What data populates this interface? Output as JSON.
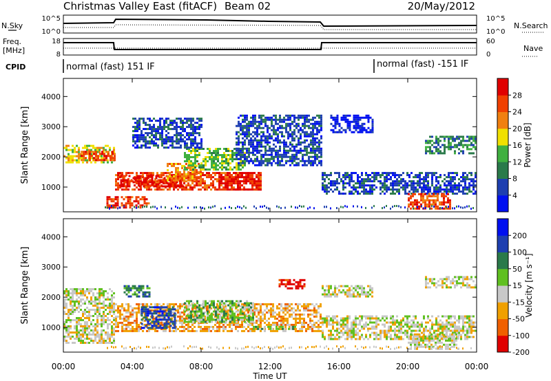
{
  "header": {
    "title": "Christmas Valley East (fitACF)",
    "beam": "Beam 02",
    "date": "20/May/2012"
  },
  "top_panels": {
    "nsky": {
      "left_label": "N.Sky",
      "right_label": "N.Search",
      "ticks": [
        "10^5",
        "10^0"
      ]
    },
    "freq": {
      "left_label_1": "Freq.",
      "left_label_2": "[MHz]",
      "ticks_left": [
        "18",
        "8"
      ],
      "ticks_right": [
        "60",
        "0"
      ],
      "right_label": "Nave"
    },
    "cpid": {
      "label": "CPID",
      "segments": [
        "normal (fast) 151 IF",
        "normal (fast) -151 IF"
      ]
    }
  },
  "chart_data": [
    {
      "type": "heatmap",
      "name": "Power",
      "ylabel": "Slant Range [km]",
      "yticks": [
        1000,
        2000,
        3000,
        4000
      ],
      "ylim": [
        180,
        4600
      ],
      "xlim": [
        0,
        24
      ],
      "colorbar": {
        "label": "Power [dB]",
        "ticks": [
          "4",
          "8",
          "12",
          "16",
          "20",
          "24",
          "28"
        ],
        "colors": [
          "#0010f0",
          "#1e3fb0",
          "#2a7a4a",
          "#40b040",
          "#f0e000",
          "#f08010",
          "#f04000",
          "#e00000"
        ]
      },
      "regions": [
        {
          "x0": 0.0,
          "x1": 3.0,
          "y0": 1800,
          "y1": 2400,
          "level": 4
        },
        {
          "x0": 1.0,
          "x1": 3.0,
          "y0": 1900,
          "y1": 2200,
          "level": 6
        },
        {
          "x0": 3.0,
          "x1": 11.5,
          "y0": 900,
          "y1": 1500,
          "level": 6
        },
        {
          "x0": 3.3,
          "x1": 7.0,
          "y0": 1050,
          "y1": 1400,
          "level": 7
        },
        {
          "x0": 6.0,
          "x1": 8.0,
          "y0": 1200,
          "y1": 1800,
          "level": 5
        },
        {
          "x0": 9.0,
          "x1": 11.5,
          "y0": 900,
          "y1": 1500,
          "level": 7
        },
        {
          "x0": 2.5,
          "x1": 5.0,
          "y0": 300,
          "y1": 700,
          "level": 6
        },
        {
          "x0": 7.0,
          "x1": 10.5,
          "y0": 1600,
          "y1": 2300,
          "level": 3
        },
        {
          "x0": 4.0,
          "x1": 8.0,
          "y0": 2300,
          "y1": 3300,
          "level": 1
        },
        {
          "x0": 10.0,
          "x1": 15.0,
          "y0": 1700,
          "y1": 3400,
          "level": 1
        },
        {
          "x0": 15.0,
          "x1": 24.0,
          "y0": 800,
          "y1": 1500,
          "level": 1
        },
        {
          "x0": 20.0,
          "x1": 22.5,
          "y0": 300,
          "y1": 800,
          "level": 6
        },
        {
          "x0": 21.0,
          "x1": 24.0,
          "y0": 2100,
          "y1": 2700,
          "level": 2
        },
        {
          "x0": 15.5,
          "x1": 18.0,
          "y0": 2800,
          "y1": 3400,
          "level": 0
        }
      ]
    },
    {
      "type": "heatmap",
      "name": "Velocity",
      "ylabel": "Slant Range [km]",
      "yticks": [
        1000,
        2000,
        3000,
        4000
      ],
      "ylim": [
        180,
        4600
      ],
      "xlim": [
        0,
        24
      ],
      "xticks": [
        "00:00",
        "04:00",
        "08:00",
        "12:00",
        "16:00",
        "20:00",
        "00:00"
      ],
      "xlabel": "Time UT",
      "colorbar": {
        "label": "Velocity [m s⁻¹]",
        "ticks": [
          "200",
          "100",
          "50",
          "15",
          "-15",
          "-50",
          "-100",
          "-200"
        ],
        "colors": [
          "#0010f0",
          "#1e3fb0",
          "#2a7a4a",
          "#60c020",
          "#c8c8c8",
          "#f0a000",
          "#f06000",
          "#e00000"
        ]
      },
      "regions": [
        {
          "x0": 0.0,
          "x1": 3.0,
          "y0": 500,
          "y1": 2300,
          "level": 4
        },
        {
          "x0": 3.0,
          "x1": 15.0,
          "y0": 900,
          "y1": 1800,
          "level": 5
        },
        {
          "x0": 4.5,
          "x1": 6.5,
          "y0": 1000,
          "y1": 1700,
          "level": 1
        },
        {
          "x0": 7.0,
          "x1": 11.0,
          "y0": 1200,
          "y1": 1900,
          "level": 3
        },
        {
          "x0": 11.0,
          "x1": 13.5,
          "y0": 950,
          "y1": 1050,
          "level": 3
        },
        {
          "x0": 3.5,
          "x1": 5.0,
          "y0": 2000,
          "y1": 2400,
          "level": 2
        },
        {
          "x0": 12.5,
          "x1": 14.0,
          "y0": 2300,
          "y1": 2600,
          "level": 7
        },
        {
          "x0": 15.0,
          "x1": 24.0,
          "y0": 600,
          "y1": 1400,
          "level": 4
        },
        {
          "x0": 20.0,
          "x1": 23.0,
          "y0": 300,
          "y1": 800,
          "level": 4
        },
        {
          "x0": 21.0,
          "x1": 24.0,
          "y0": 2300,
          "y1": 2700,
          "level": 4
        },
        {
          "x0": 15.0,
          "x1": 18.0,
          "y0": 2000,
          "y1": 2400,
          "level": 4
        }
      ]
    }
  ]
}
